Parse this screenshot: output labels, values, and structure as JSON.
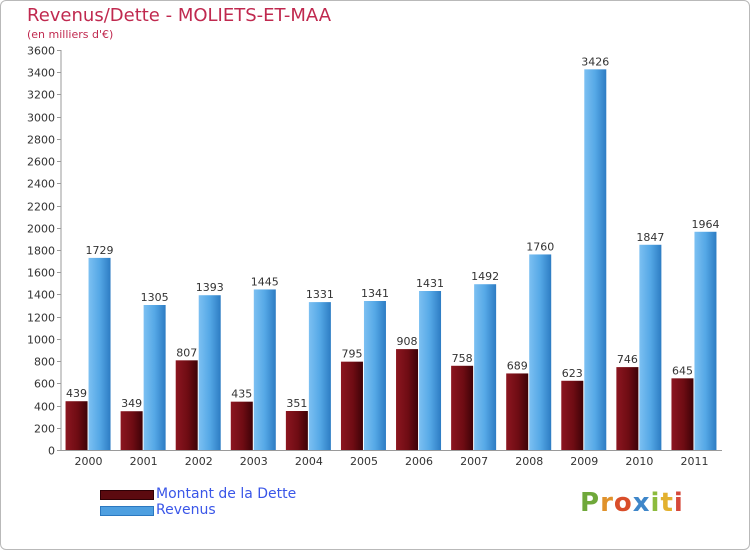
{
  "title": "Revenus/Dette - MOLIETS-ET-MAA",
  "subtitle": "(en milliers d'€)",
  "legend": [
    {
      "label": "Montant de la Dette",
      "color": "#6e0c13"
    },
    {
      "label": "Revenus",
      "color": "#55a8e6"
    }
  ],
  "logo": {
    "text": "Proxiti",
    "letters": [
      "P",
      "r",
      "o",
      "x",
      "i",
      "t",
      "i"
    ],
    "colors": [
      "#6fa83a",
      "#e0922b",
      "#d94e2a",
      "#3e86c9",
      "#8cbb3d",
      "#e3b12f",
      "#d6483a"
    ]
  },
  "chart_data": {
    "type": "bar",
    "categories": [
      "2000",
      "2001",
      "2002",
      "2003",
      "2004",
      "2005",
      "2006",
      "2007",
      "2008",
      "2009",
      "2010",
      "2011"
    ],
    "series": [
      {
        "name": "Montant de la Dette",
        "values": [
          439,
          349,
          807,
          435,
          351,
          795,
          908,
          758,
          689,
          623,
          746,
          645
        ],
        "color": "#6e0c13"
      },
      {
        "name": "Revenus",
        "values": [
          1729,
          1305,
          1393,
          1445,
          1331,
          1341,
          1431,
          1492,
          1760,
          3426,
          1847,
          1964
        ],
        "color": "#55a8e6"
      }
    ],
    "ylim": [
      0,
      3600
    ],
    "yticks": [
      0,
      200,
      400,
      600,
      800,
      1000,
      1200,
      1400,
      1600,
      1800,
      2000,
      2200,
      2400,
      2600,
      2800,
      3000,
      3200,
      3400,
      3600
    ],
    "grid": false,
    "legend_position": "bottom-left"
  }
}
